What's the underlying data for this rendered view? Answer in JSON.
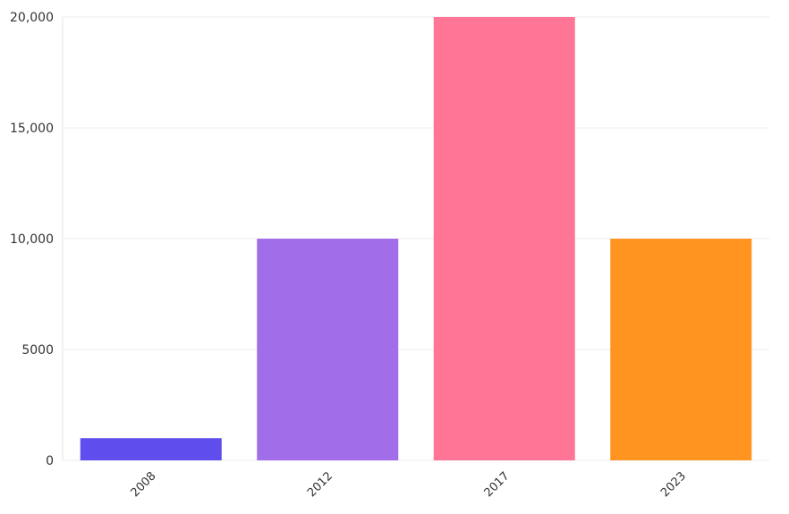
{
  "chart_data": {
    "type": "bar",
    "title": "",
    "xlabel": "",
    "ylabel": "",
    "categories": [
      "2008",
      "2012",
      "2017",
      "2023"
    ],
    "values": [
      1000,
      10000,
      20000,
      10000
    ],
    "colors": [
      "#5f4ded",
      "#a16de9",
      "#ff7595",
      "#ff9421"
    ],
    "ylim": [
      0,
      20000
    ],
    "yticks": [
      0,
      5000,
      10000,
      15000,
      20000
    ],
    "ytick_labels": [
      "0",
      "5000",
      "10,000",
      "15,000",
      "20,000"
    ],
    "grid": true,
    "legend": "none"
  }
}
